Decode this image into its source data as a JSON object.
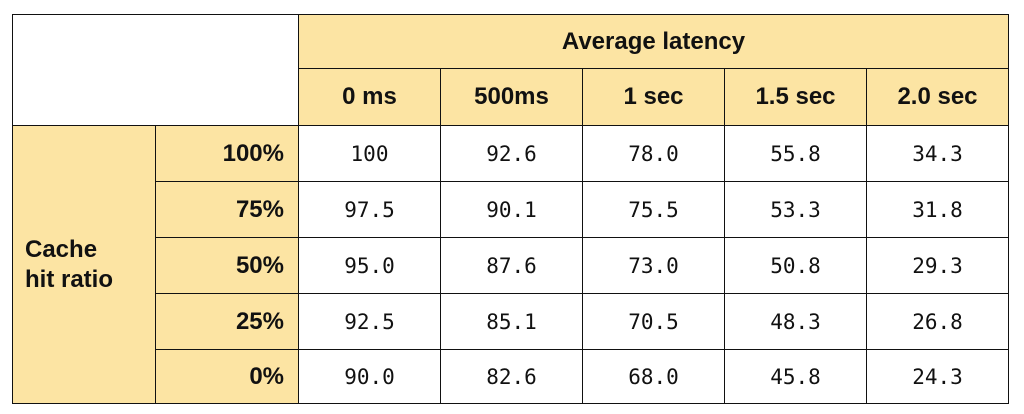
{
  "table": {
    "top_header": "Average latency",
    "columns": [
      "0 ms",
      "500ms",
      "1 sec",
      "1.5 sec",
      "2.0 sec"
    ],
    "row_group": [
      "Cache",
      "hit ratio"
    ],
    "rows": [
      {
        "label": "100%",
        "values": [
          "100",
          "92.6",
          "78.0",
          "55.8",
          "34.3"
        ]
      },
      {
        "label": "75%",
        "values": [
          "97.5",
          "90.1",
          "75.5",
          "53.3",
          "31.8"
        ]
      },
      {
        "label": "50%",
        "values": [
          "95.0",
          "87.6",
          "73.0",
          "50.8",
          "29.3"
        ]
      },
      {
        "label": "25%",
        "values": [
          "92.5",
          "85.1",
          "70.5",
          "48.3",
          "26.8"
        ]
      },
      {
        "label": "0%",
        "values": [
          "90.0",
          "82.6",
          "68.0",
          "45.8",
          "24.3"
        ]
      }
    ]
  }
}
